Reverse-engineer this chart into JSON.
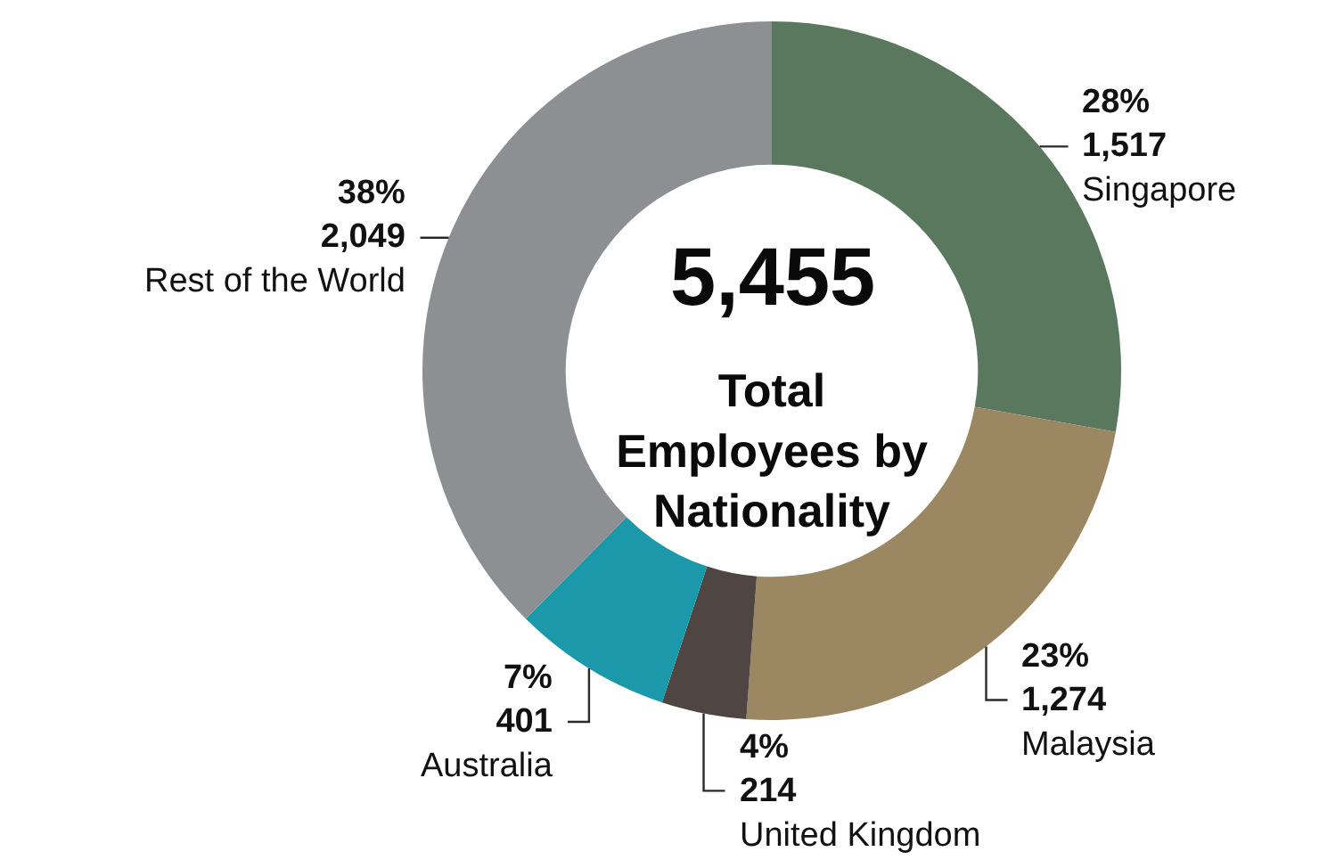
{
  "chart_data": {
    "type": "donut",
    "title": "Total Employees by Nationality",
    "annotations": [
      "5,455"
    ],
    "categories": [
      "Singapore",
      "Malaysia",
      "United Kingdom",
      "Australia",
      "Rest of the World"
    ],
    "values": [
      1517,
      1274,
      214,
      401,
      2049
    ],
    "value_labels": [
      "28%\n1,517",
      "23%\n1,274",
      "4%\n214",
      "7%\n401",
      "38%\n2,049"
    ],
    "colors": [
      "#5a785d",
      "#9b8762",
      "#4f4643",
      "#1b98a9",
      "#8e8f93"
    ]
  }
}
